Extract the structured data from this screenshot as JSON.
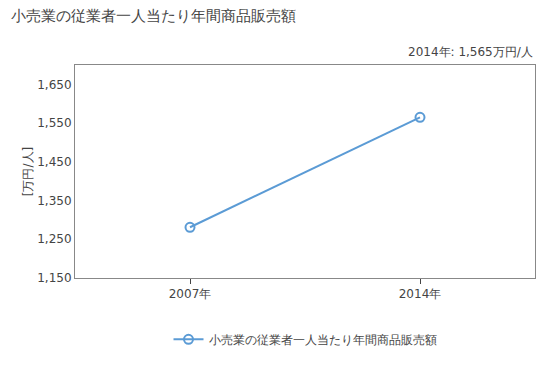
{
  "chart_data": {
    "type": "line",
    "title": "小売業の従業者一人当たり年間商品販売額",
    "ylabel": "[万円/人]",
    "annotation": "2014年: 1,565万円/人",
    "x": [
      2007,
      2014
    ],
    "series": [
      {
        "name": "小売業の従業者一人当たり年間商品販売額",
        "color": "#5b9bd5",
        "marker": "circle-open",
        "values": [
          1281,
          1565
        ]
      }
    ],
    "xlim": [
      2003.5,
      2017.5
    ],
    "xticks": [
      {
        "value": 2007,
        "label": "2007年"
      },
      {
        "value": 2014,
        "label": "2014年"
      }
    ],
    "ylim": [
      1150,
      1700
    ],
    "yticks": [
      {
        "value": 1150,
        "label": "1,150"
      },
      {
        "value": 1250,
        "label": "1,250"
      },
      {
        "value": 1350,
        "label": "1,350"
      },
      {
        "value": 1450,
        "label": "1,450"
      },
      {
        "value": 1550,
        "label": "1,550"
      },
      {
        "value": 1650,
        "label": "1,650"
      }
    ],
    "grid": false,
    "legend": "bottom"
  }
}
